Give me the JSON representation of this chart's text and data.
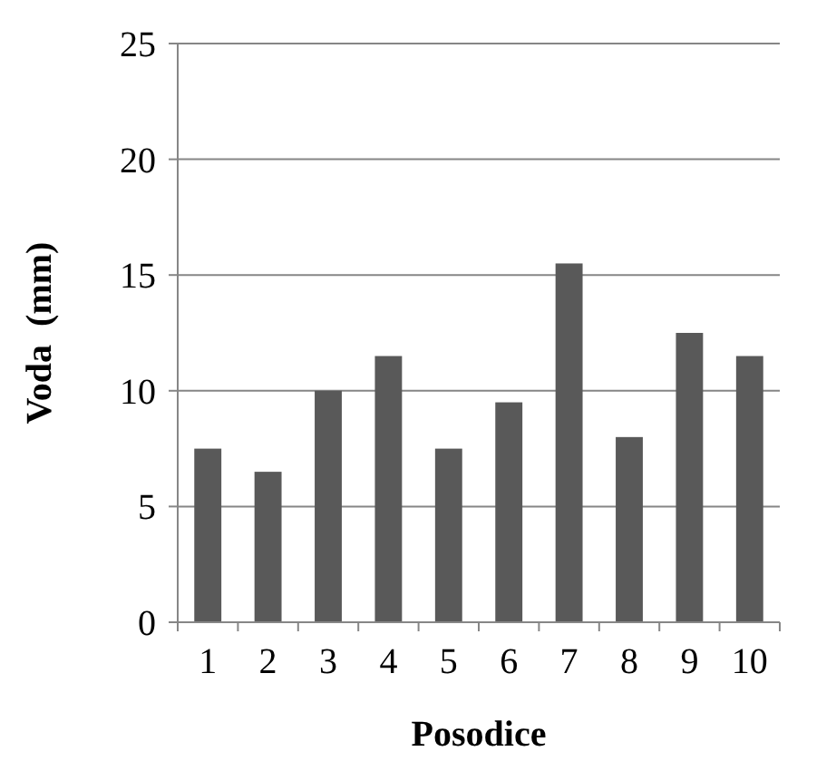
{
  "chart_data": {
    "type": "bar",
    "xlabel": "Posodice",
    "ylabel": "Voda  (mm)",
    "categories": [
      "1",
      "2",
      "3",
      "4",
      "5",
      "6",
      "7",
      "8",
      "9",
      "10"
    ],
    "values": [
      7.5,
      6.5,
      10,
      11.5,
      7.5,
      9.5,
      15.5,
      8,
      12.5,
      11.5
    ],
    "color": "#595959",
    "ylim": [
      0,
      25
    ],
    "yticks": [
      0,
      5,
      10,
      15,
      20,
      25
    ],
    "grid": "y"
  }
}
